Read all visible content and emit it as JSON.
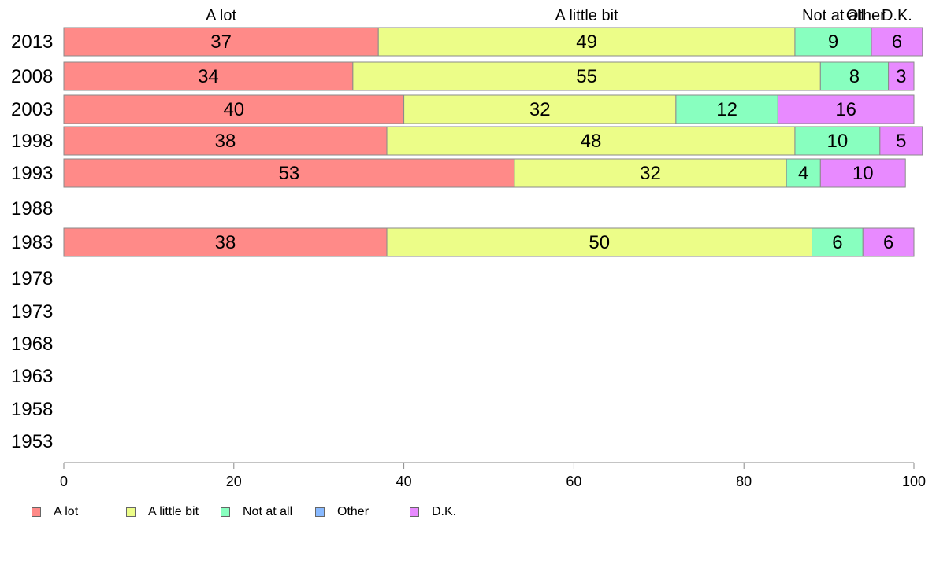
{
  "chart_data": {
    "type": "bar",
    "orientation": "horizontal",
    "stacked": true,
    "categories": [
      "2013",
      "2008",
      "2003",
      "1998",
      "1993",
      "1988",
      "1983",
      "1978",
      "1973",
      "1968",
      "1963",
      "1958",
      "1953"
    ],
    "series": [
      {
        "name": "A lot",
        "color": "#ff8a88",
        "values": [
          37,
          34,
          40,
          38,
          53,
          null,
          38,
          null,
          null,
          null,
          null,
          null,
          null
        ]
      },
      {
        "name": "A little bit",
        "color": "#ecfd88",
        "values": [
          49,
          55,
          32,
          48,
          32,
          null,
          50,
          null,
          null,
          null,
          null,
          null,
          null
        ]
      },
      {
        "name": "Not at all",
        "color": "#88ffbf",
        "values": [
          9,
          8,
          12,
          10,
          4,
          null,
          6,
          null,
          null,
          null,
          null,
          null,
          null
        ]
      },
      {
        "name": "Other",
        "color": "#88b9ff",
        "values": [
          null,
          null,
          null,
          null,
          null,
          null,
          null,
          null,
          null,
          null,
          null,
          null,
          null
        ]
      },
      {
        "name": "D.K.",
        "color": "#e88aff",
        "values": [
          6,
          3,
          16,
          5,
          10,
          null,
          6,
          null,
          null,
          null,
          null,
          null,
          null
        ]
      }
    ],
    "top_labels": [
      "A lot",
      "A little bit",
      "Not at all",
      "Other",
      "D.K."
    ],
    "xlim": [
      0,
      100
    ],
    "x_ticks": [
      0,
      20,
      40,
      60,
      80,
      100
    ],
    "grid": false,
    "legend_position": "bottom-left"
  }
}
